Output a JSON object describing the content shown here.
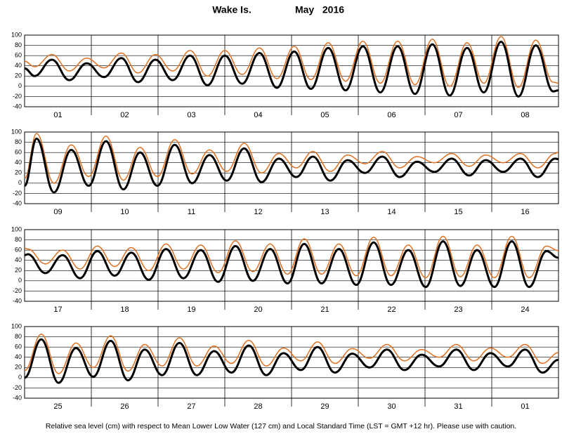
{
  "title": "Wake Is.",
  "subtitle": "May   2016",
  "note": "Relative sea level (cm) with respect to Mean Lower Low Water (127 cm) and Local Standard Time (LST = GMT +12 hr). Please use with caution.",
  "chart_data": [
    {
      "type": "line",
      "categories": [
        "01",
        "02",
        "03",
        "04",
        "05",
        "06",
        "07",
        "08"
      ],
      "xlim": [
        0,
        8
      ],
      "ylim": [
        -40,
        100
      ],
      "yticks": [
        -40,
        -20,
        0,
        20,
        40,
        60,
        80,
        100
      ],
      "grid": true,
      "x": [
        0,
        0.15,
        0.41,
        0.67,
        0.93,
        1.19,
        1.45,
        1.7,
        1.96,
        2.22,
        2.48,
        2.74,
        3.0,
        3.26,
        3.52,
        3.78,
        4.04,
        4.29,
        4.55,
        4.81,
        5.07,
        5.33,
        5.59,
        5.85,
        6.11,
        6.37,
        6.63,
        6.88,
        7.14,
        7.4,
        7.66,
        7.92,
        8
      ],
      "series": [
        {
          "color": "#e07020",
          "values": [
            49,
            38,
            62,
            30,
            55,
            36,
            65,
            26,
            62,
            30,
            70,
            20,
            70,
            23,
            75,
            15,
            78,
            13,
            85,
            10,
            88,
            6,
            88,
            3,
            92,
            0,
            85,
            6,
            97,
            -2,
            90,
            8,
            6
          ]
        },
        {
          "color": "#000000",
          "values": [
            35,
            20,
            52,
            12,
            45,
            18,
            55,
            8,
            52,
            12,
            60,
            2,
            60,
            5,
            65,
            -3,
            68,
            -5,
            75,
            -8,
            78,
            -12,
            78,
            -15,
            82,
            -18,
            75,
            -12,
            87,
            -20,
            80,
            -10,
            -8
          ]
        }
      ]
    },
    {
      "type": "line",
      "categories": [
        "09",
        "10",
        "11",
        "12",
        "13",
        "14",
        "15",
        "16"
      ],
      "xlim": [
        0,
        8
      ],
      "ylim": [
        -40,
        100
      ],
      "yticks": [
        -40,
        -20,
        0,
        20,
        40,
        60,
        80,
        100
      ],
      "grid": true,
      "x": [
        0,
        0.18,
        0.44,
        0.7,
        0.96,
        1.22,
        1.48,
        1.73,
        1.99,
        2.25,
        2.51,
        2.77,
        3.03,
        3.29,
        3.55,
        3.81,
        4.07,
        4.32,
        4.58,
        4.84,
        5.1,
        5.36,
        5.62,
        5.88,
        6.14,
        6.4,
        6.66,
        6.91,
        7.17,
        7.43,
        7.69,
        7.95,
        8
      ],
      "series": [
        {
          "color": "#e07020",
          "values": [
            9,
            97,
            0,
            75,
            13,
            92,
            6,
            70,
            13,
            85,
            18,
            65,
            23,
            78,
            20,
            58,
            30,
            62,
            23,
            55,
            38,
            62,
            30,
            52,
            40,
            58,
            33,
            55,
            40,
            58,
            30,
            58,
            61
          ]
        },
        {
          "color": "#000000",
          "values": [
            -5,
            87,
            -18,
            65,
            -5,
            82,
            -12,
            60,
            -5,
            75,
            0,
            55,
            5,
            68,
            2,
            48,
            12,
            52,
            5,
            45,
            20,
            52,
            12,
            42,
            22,
            48,
            15,
            45,
            22,
            48,
            12,
            48,
            47
          ]
        }
      ]
    },
    {
      "type": "line",
      "categories": [
        "17",
        "18",
        "19",
        "20",
        "21",
        "22",
        "23",
        "24"
      ],
      "xlim": [
        0,
        8
      ],
      "ylim": [
        -40,
        100
      ],
      "yticks": [
        -40,
        -20,
        0,
        20,
        40,
        60,
        80,
        100
      ],
      "grid": true,
      "x": [
        0,
        0.05,
        0.31,
        0.57,
        0.83,
        1.09,
        1.35,
        1.6,
        1.86,
        2.12,
        2.38,
        2.64,
        2.9,
        3.16,
        3.42,
        3.68,
        3.94,
        4.19,
        4.45,
        4.71,
        4.97,
        5.23,
        5.49,
        5.75,
        6.01,
        6.27,
        6.53,
        6.78,
        7.04,
        7.3,
        7.56,
        7.82,
        8
      ],
      "series": [
        {
          "color": "#e07020",
          "values": [
            64,
            62,
            33,
            60,
            23,
            68,
            28,
            65,
            20,
            72,
            23,
            70,
            16,
            78,
            18,
            72,
            13,
            82,
            13,
            72,
            10,
            85,
            10,
            70,
            6,
            87,
            8,
            70,
            6,
            87,
            6,
            68,
            59
          ]
        },
        {
          "color": "#000000",
          "values": [
            50,
            52,
            15,
            50,
            5,
            58,
            10,
            55,
            2,
            62,
            5,
            60,
            -2,
            68,
            0,
            62,
            -5,
            72,
            -5,
            62,
            -8,
            75,
            -8,
            60,
            -12,
            77,
            -10,
            60,
            -12,
            77,
            -12,
            58,
            45
          ]
        }
      ]
    },
    {
      "type": "line",
      "categories": [
        "25",
        "26",
        "27",
        "28",
        "29",
        "30",
        "31",
        "01"
      ],
      "xlim": [
        0,
        8
      ],
      "ylim": [
        -40,
        100
      ],
      "yticks": [
        -40,
        -20,
        0,
        20,
        40,
        60,
        80,
        100
      ],
      "grid": true,
      "x": [
        0,
        0.25,
        0.51,
        0.77,
        1.03,
        1.29,
        1.55,
        1.8,
        2.06,
        2.32,
        2.58,
        2.84,
        3.1,
        3.36,
        3.62,
        3.88,
        4.14,
        4.39,
        4.65,
        4.91,
        5.17,
        5.43,
        5.69,
        5.95,
        6.21,
        6.47,
        6.73,
        6.98,
        7.24,
        7.5,
        7.76,
        8
      ],
      "series": [
        {
          "color": "#e07020",
          "values": [
            14,
            85,
            8,
            68,
            20,
            82,
            13,
            65,
            23,
            78,
            23,
            62,
            28,
            73,
            23,
            58,
            33,
            70,
            28,
            57,
            38,
            65,
            33,
            55,
            40,
            65,
            33,
            58,
            40,
            65,
            28,
            49
          ]
        },
        {
          "color": "#000000",
          "values": [
            0,
            75,
            -10,
            58,
            2,
            72,
            -5,
            55,
            5,
            68,
            5,
            52,
            10,
            63,
            5,
            48,
            15,
            60,
            10,
            47,
            20,
            55,
            15,
            45,
            22,
            55,
            15,
            48,
            22,
            55,
            10,
            35
          ]
        }
      ]
    }
  ]
}
